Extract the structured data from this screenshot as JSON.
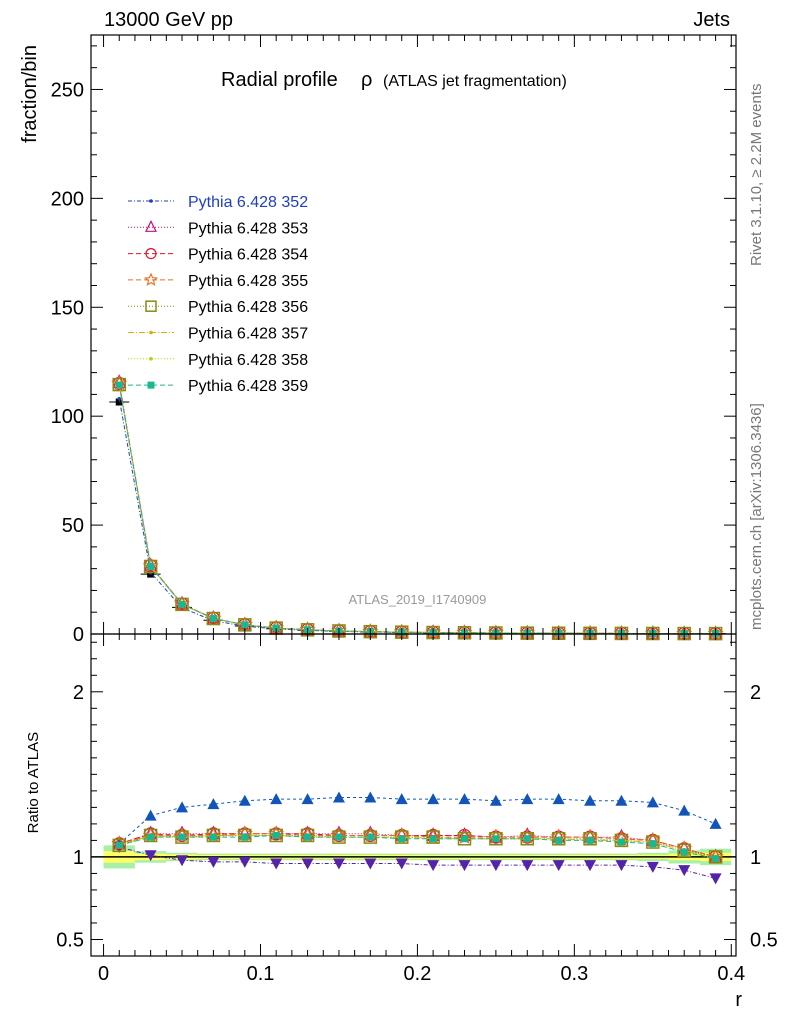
{
  "header": {
    "left": "13000 GeV pp",
    "right": "Jets"
  },
  "side_labels": {
    "rivet": "Rivet 3.1.10, ≥ 2.2M events",
    "mcplots": "mcplots.cern.ch [arXiv:1306.3436]"
  },
  "chart_data": [
    {
      "type": "scatter",
      "panel": "main",
      "title": "Radial profile",
      "title_symbol": "ρ",
      "title_suffix": "(ATLAS jet fragmentation)",
      "watermark": "ATLAS_2019_I1740909",
      "xlabel": "",
      "ylabel": "fraction/bin",
      "xlim": [
        -0.008,
        0.403
      ],
      "ylim": [
        0,
        275
      ],
      "yticks": [
        0,
        50,
        100,
        150,
        200,
        250
      ],
      "ytick_labels": [
        "0",
        "50",
        "100",
        "150",
        "200",
        "250"
      ],
      "legend_placement": "top-left",
      "x": [
        0.01,
        0.03,
        0.05,
        0.07,
        0.09,
        0.11,
        0.13,
        0.15,
        0.17,
        0.19,
        0.21,
        0.23,
        0.25,
        0.27,
        0.29,
        0.31,
        0.33,
        0.35,
        0.37,
        0.39
      ],
      "data": {
        "name": "ATLAS",
        "values": [
          106.5,
          27.5,
          12.2,
          6.3,
          3.7,
          2.4,
          1.7,
          1.25,
          0.95,
          0.75,
          0.6,
          0.5,
          0.42,
          0.36,
          0.31,
          0.27,
          0.24,
          0.21,
          0.19,
          0.17
        ]
      },
      "series": [
        {
          "name": "Pythia 6.428 352",
          "color": "#1f3fbf",
          "marker": "dot",
          "dash": "4,2,1,2",
          "values": [
            108,
            28.2,
            12.0,
            6.1,
            3.6,
            2.35,
            1.65,
            1.2,
            0.9,
            0.72,
            0.58,
            0.48,
            0.4,
            0.34,
            0.3,
            0.26,
            0.23,
            0.2,
            0.18,
            0.15
          ]
        },
        {
          "name": "Pythia 6.428 353",
          "color": "#c0127c",
          "marker": "triangle-open",
          "dash": "1,2",
          "values": [
            115.5,
            31.4,
            13.8,
            7.2,
            4.2,
            2.75,
            1.95,
            1.42,
            1.08,
            0.85,
            0.68,
            0.57,
            0.47,
            0.41,
            0.35,
            0.3,
            0.27,
            0.23,
            0.2,
            0.17
          ]
        },
        {
          "name": "Pythia 6.428 354",
          "color": "#e0102a",
          "marker": "circle-open",
          "dash": "5,3",
          "values": [
            115,
            31.3,
            13.7,
            7.2,
            4.2,
            2.74,
            1.94,
            1.41,
            1.08,
            0.85,
            0.68,
            0.57,
            0.47,
            0.41,
            0.35,
            0.3,
            0.27,
            0.23,
            0.2,
            0.17
          ]
        },
        {
          "name": "Pythia 6.428 355",
          "color": "#ee6a1a",
          "marker": "star-open",
          "dash": "5,3",
          "values": [
            115,
            31.2,
            13.7,
            7.1,
            4.2,
            2.73,
            1.93,
            1.41,
            1.08,
            0.85,
            0.68,
            0.57,
            0.47,
            0.41,
            0.35,
            0.3,
            0.27,
            0.23,
            0.2,
            0.17
          ]
        },
        {
          "name": "Pythia 6.428 356",
          "color": "#8a8a12",
          "marker": "square-open",
          "dash": "1,2",
          "values": [
            114.5,
            31.0,
            13.6,
            7.1,
            4.2,
            2.72,
            1.92,
            1.4,
            1.07,
            0.84,
            0.67,
            0.56,
            0.47,
            0.4,
            0.35,
            0.3,
            0.26,
            0.23,
            0.2,
            0.17
          ]
        },
        {
          "name": "Pythia 6.428 357",
          "color": "#dcb000",
          "marker": "dot",
          "dash": "6,2,1,2",
          "values": [
            114.5,
            31.1,
            13.6,
            7.1,
            4.2,
            2.72,
            1.92,
            1.4,
            1.07,
            0.84,
            0.67,
            0.56,
            0.47,
            0.4,
            0.35,
            0.3,
            0.26,
            0.23,
            0.2,
            0.17
          ]
        },
        {
          "name": "Pythia 6.428 358",
          "color": "#b4d40a",
          "marker": "dot",
          "dash": "1,2",
          "values": [
            114.5,
            31.1,
            13.6,
            7.1,
            4.2,
            2.72,
            1.92,
            1.4,
            1.07,
            0.84,
            0.67,
            0.56,
            0.47,
            0.4,
            0.35,
            0.3,
            0.26,
            0.23,
            0.2,
            0.17
          ]
        },
        {
          "name": "Pythia 6.428 359",
          "color": "#1ab890",
          "marker": "square-filled",
          "dash": "5,3",
          "values": [
            114.3,
            31.0,
            13.6,
            7.1,
            4.2,
            2.72,
            1.92,
            1.4,
            1.07,
            0.84,
            0.67,
            0.56,
            0.46,
            0.4,
            0.35,
            0.3,
            0.26,
            0.22,
            0.19,
            0.17
          ]
        }
      ]
    },
    {
      "type": "scatter",
      "panel": "ratio",
      "xlabel": "r",
      "ylabel": "Ratio to ATLAS",
      "xlim": [
        -0.008,
        0.403
      ],
      "ylim": [
        0.4,
        2.35
      ],
      "yticks": [
        0.5,
        1,
        2
      ],
      "ytick_labels": [
        "0.5",
        "1",
        "2"
      ],
      "xticks": [
        0,
        0.1,
        0.2,
        0.3,
        0.4
      ],
      "xtick_labels": [
        "0",
        "0.1",
        "0.2",
        "0.3",
        "0.4"
      ],
      "x": [
        0.01,
        0.03,
        0.05,
        0.07,
        0.09,
        0.11,
        0.13,
        0.15,
        0.17,
        0.19,
        0.21,
        0.23,
        0.25,
        0.27,
        0.29,
        0.31,
        0.33,
        0.35,
        0.37,
        0.39
      ],
      "reference_band": {
        "inner": [
          0.035,
          0.02,
          0.015,
          0.012,
          0.012,
          0.012,
          0.012,
          0.012,
          0.012,
          0.012,
          0.012,
          0.012,
          0.012,
          0.012,
          0.012,
          0.012,
          0.012,
          0.013,
          0.02,
          0.025
        ],
        "outer": [
          0.07,
          0.035,
          0.025,
          0.02,
          0.02,
          0.02,
          0.02,
          0.02,
          0.02,
          0.02,
          0.02,
          0.02,
          0.02,
          0.02,
          0.02,
          0.02,
          0.02,
          0.025,
          0.04,
          0.05
        ],
        "inner_color": "#ffff66",
        "outer_color": "#a8f0a8"
      },
      "series": [
        {
          "name": "Pythia 6.428 352 up",
          "color": "#1155bb",
          "marker": "triangle-up",
          "dash": "3,3",
          "values": [
            1.08,
            1.25,
            1.3,
            1.32,
            1.34,
            1.35,
            1.35,
            1.36,
            1.36,
            1.35,
            1.35,
            1.35,
            1.34,
            1.35,
            1.35,
            1.34,
            1.34,
            1.33,
            1.28,
            1.2
          ]
        },
        {
          "name": "Pythia 6.428 352 down",
          "color": "#5522aa",
          "marker": "triangle-down",
          "dash": "4,2,1,2",
          "values": [
            1.06,
            1.01,
            0.98,
            0.97,
            0.97,
            0.96,
            0.96,
            0.96,
            0.96,
            0.96,
            0.95,
            0.95,
            0.95,
            0.95,
            0.95,
            0.95,
            0.95,
            0.94,
            0.92,
            0.87
          ]
        },
        {
          "name": "Pythia 6.428 353",
          "color": "#c0127c",
          "marker": "triangle-open",
          "dash": "1,2",
          "values": [
            1.08,
            1.14,
            1.14,
            1.14,
            1.14,
            1.14,
            1.14,
            1.14,
            1.14,
            1.13,
            1.13,
            1.13,
            1.12,
            1.13,
            1.12,
            1.12,
            1.12,
            1.1,
            1.05,
            1.0
          ]
        },
        {
          "name": "Pythia 6.428 354",
          "color": "#e0102a",
          "marker": "circle-open",
          "dash": "5,3",
          "values": [
            1.08,
            1.14,
            1.13,
            1.14,
            1.14,
            1.14,
            1.14,
            1.13,
            1.13,
            1.13,
            1.13,
            1.13,
            1.12,
            1.12,
            1.12,
            1.12,
            1.11,
            1.1,
            1.05,
            1.0
          ]
        },
        {
          "name": "Pythia 6.428 355",
          "color": "#ee6a1a",
          "marker": "star-open",
          "dash": "5,3",
          "values": [
            1.08,
            1.13,
            1.13,
            1.13,
            1.14,
            1.14,
            1.13,
            1.13,
            1.13,
            1.13,
            1.12,
            1.12,
            1.12,
            1.12,
            1.12,
            1.12,
            1.11,
            1.1,
            1.05,
            1.0
          ]
        },
        {
          "name": "Pythia 6.428 356",
          "color": "#8a8a12",
          "marker": "square-open",
          "dash": "1,2",
          "values": [
            1.07,
            1.13,
            1.12,
            1.13,
            1.13,
            1.13,
            1.13,
            1.12,
            1.12,
            1.12,
            1.12,
            1.11,
            1.11,
            1.11,
            1.11,
            1.11,
            1.1,
            1.09,
            1.04,
            1.0
          ]
        },
        {
          "name": "Pythia 6.428 357",
          "color": "#dcb000",
          "marker": "dot",
          "dash": "6,2,1,2",
          "values": [
            1.07,
            1.13,
            1.12,
            1.13,
            1.13,
            1.13,
            1.12,
            1.12,
            1.12,
            1.12,
            1.11,
            1.11,
            1.11,
            1.11,
            1.11,
            1.1,
            1.1,
            1.09,
            1.04,
            0.99
          ]
        },
        {
          "name": "Pythia 6.428 358",
          "color": "#b4d40a",
          "marker": "dot",
          "dash": "1,2",
          "values": [
            1.07,
            1.12,
            1.12,
            1.12,
            1.13,
            1.13,
            1.12,
            1.12,
            1.12,
            1.12,
            1.11,
            1.11,
            1.11,
            1.11,
            1.11,
            1.1,
            1.1,
            1.08,
            1.03,
            0.99
          ]
        },
        {
          "name": "Pythia 6.428 359",
          "color": "#1ab890",
          "marker": "square-filled",
          "dash": "5,3",
          "values": [
            1.07,
            1.12,
            1.12,
            1.12,
            1.12,
            1.13,
            1.12,
            1.12,
            1.12,
            1.11,
            1.11,
            1.11,
            1.11,
            1.11,
            1.1,
            1.1,
            1.09,
            1.08,
            1.03,
            0.99
          ]
        }
      ]
    }
  ]
}
